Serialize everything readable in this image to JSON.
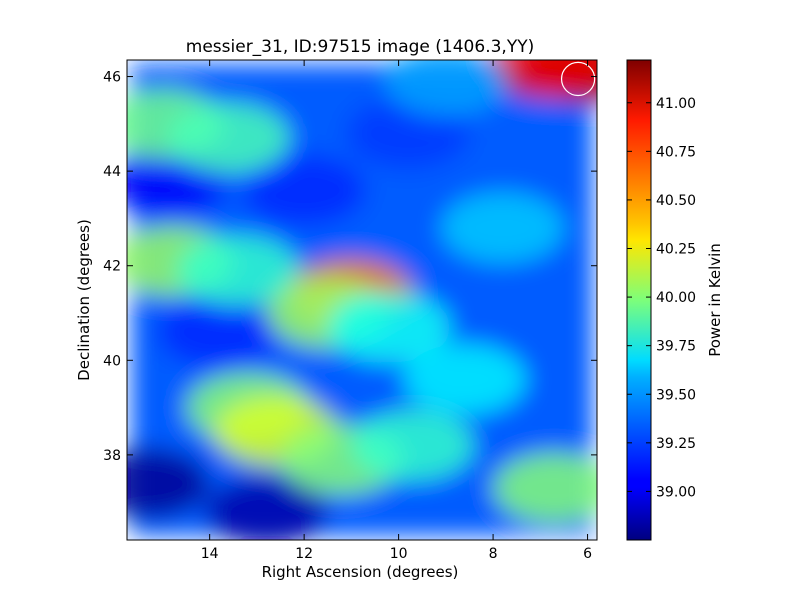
{
  "chart_data": {
    "type": "heatmap",
    "title": "messier_31, ID:97515 image (1406.3,YY)",
    "xlabel": "Right Ascension (degrees)",
    "ylabel": "Declination (degrees)",
    "xlim": [
      15.75,
      5.8
    ],
    "ylim": [
      36.2,
      46.35
    ],
    "x_ticks": [
      14,
      12,
      10,
      8,
      6
    ],
    "y_ticks": [
      38,
      40,
      42,
      44,
      46
    ],
    "colorbar": {
      "label": "Power in Kelvin",
      "range": [
        38.75,
        41.22
      ],
      "ticks": [
        "39.00",
        "39.25",
        "39.50",
        "39.75",
        "40.00",
        "40.25",
        "40.50",
        "40.75",
        "41.00"
      ],
      "colormap": "jet"
    },
    "background_level": 39.28,
    "features": [
      {
        "ra": 15.3,
        "dec": 37.4,
        "value": 38.8
      },
      {
        "ra": 12.8,
        "dec": 36.8,
        "value": 38.85
      },
      {
        "ra": 14.9,
        "dec": 43.8,
        "value": 39.05
      },
      {
        "ra": 12.0,
        "dec": 43.6,
        "value": 39.15
      },
      {
        "ra": 13.8,
        "dec": 40.6,
        "value": 39.15
      },
      {
        "ra": 9.8,
        "dec": 44.8,
        "value": 39.2
      },
      {
        "ra": 15.0,
        "dec": 45.0,
        "value": 39.95
      },
      {
        "ra": 13.6,
        "dec": 44.7,
        "value": 39.85
      },
      {
        "ra": 14.8,
        "dec": 42.1,
        "value": 40.05
      },
      {
        "ra": 13.4,
        "dec": 41.9,
        "value": 39.8
      },
      {
        "ra": 11.0,
        "dec": 41.4,
        "value": 40.6
      },
      {
        "ra": 11.5,
        "dec": 41.0,
        "value": 40.05
      },
      {
        "ra": 10.2,
        "dec": 40.7,
        "value": 39.7
      },
      {
        "ra": 13.2,
        "dec": 39.0,
        "value": 40.0
      },
      {
        "ra": 12.6,
        "dec": 38.5,
        "value": 40.2
      },
      {
        "ra": 11.2,
        "dec": 37.9,
        "value": 40.0
      },
      {
        "ra": 9.7,
        "dec": 38.2,
        "value": 39.8
      },
      {
        "ra": 8.6,
        "dec": 39.6,
        "value": 39.65
      },
      {
        "ra": 6.7,
        "dec": 37.3,
        "value": 40.0
      },
      {
        "ra": 6.0,
        "dec": 46.2,
        "value": 41.2
      },
      {
        "ra": 6.8,
        "dec": 46.3,
        "value": 40.95
      },
      {
        "ra": 7.8,
        "dec": 42.8,
        "value": 39.55
      },
      {
        "ra": 9.0,
        "dec": 45.9,
        "value": 39.45
      }
    ],
    "marker": {
      "shape": "circle",
      "ra": 6.2,
      "dec": 45.95,
      "radius_deg": 0.35
    }
  }
}
